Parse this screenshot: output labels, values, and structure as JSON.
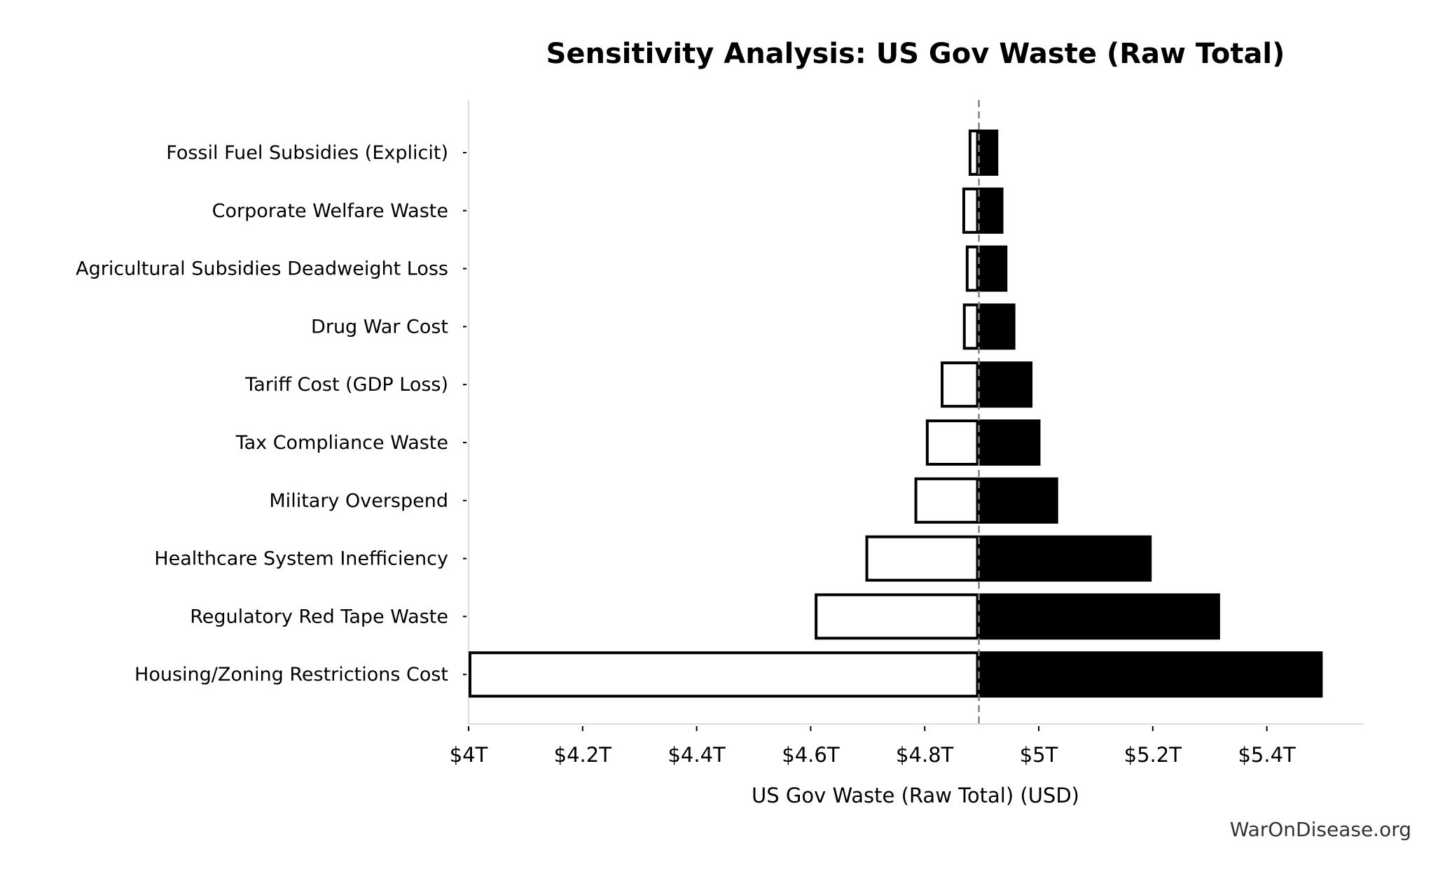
{
  "chart_data": {
    "type": "bar",
    "orientation": "horizontal",
    "subtype": "tornado",
    "title": "Sensitivity Analysis: US Gov Waste (Raw Total)",
    "xlabel": "US Gov Waste (Raw Total) (USD)",
    "ylabel": "",
    "baseline": 4.895,
    "xlim": [
      4.0,
      5.57
    ],
    "xticks": [
      4.0,
      4.2,
      4.4,
      4.6,
      4.8,
      5.0,
      5.2,
      5.4
    ],
    "xtick_labels": [
      "$4T",
      "$4.2T",
      "$4.4T",
      "$4.6T",
      "$4.8T",
      "$5T",
      "$5.2T",
      "$5.4T"
    ],
    "units": "trillion USD",
    "categories": [
      "Fossil Fuel Subsidies (Explicit)",
      "Corporate Welfare Waste",
      "Agricultural Subsidies Deadweight Loss",
      "Drug War Cost",
      "Tariff Cost (GDP Loss)",
      "Tax Compliance Waste",
      "Military Overspend",
      "Healthcare System Inefficiency",
      "Regulatory Red Tape Waste",
      "Housing/Zoning Restrictions Cost"
    ],
    "low": [
      4.877,
      4.866,
      4.872,
      4.867,
      4.828,
      4.802,
      4.782,
      4.696,
      4.607,
      4.0
    ],
    "high": [
      4.929,
      4.938,
      4.945,
      4.959,
      4.989,
      5.003,
      5.034,
      5.198,
      5.318,
      5.498
    ],
    "colors": {
      "low_fill": "#ffffff",
      "high_fill": "#000000",
      "baseline": "#808080",
      "spine": "#dddddd"
    },
    "grid": false,
    "legend": "none"
  },
  "watermark": "WarOnDisease.org"
}
